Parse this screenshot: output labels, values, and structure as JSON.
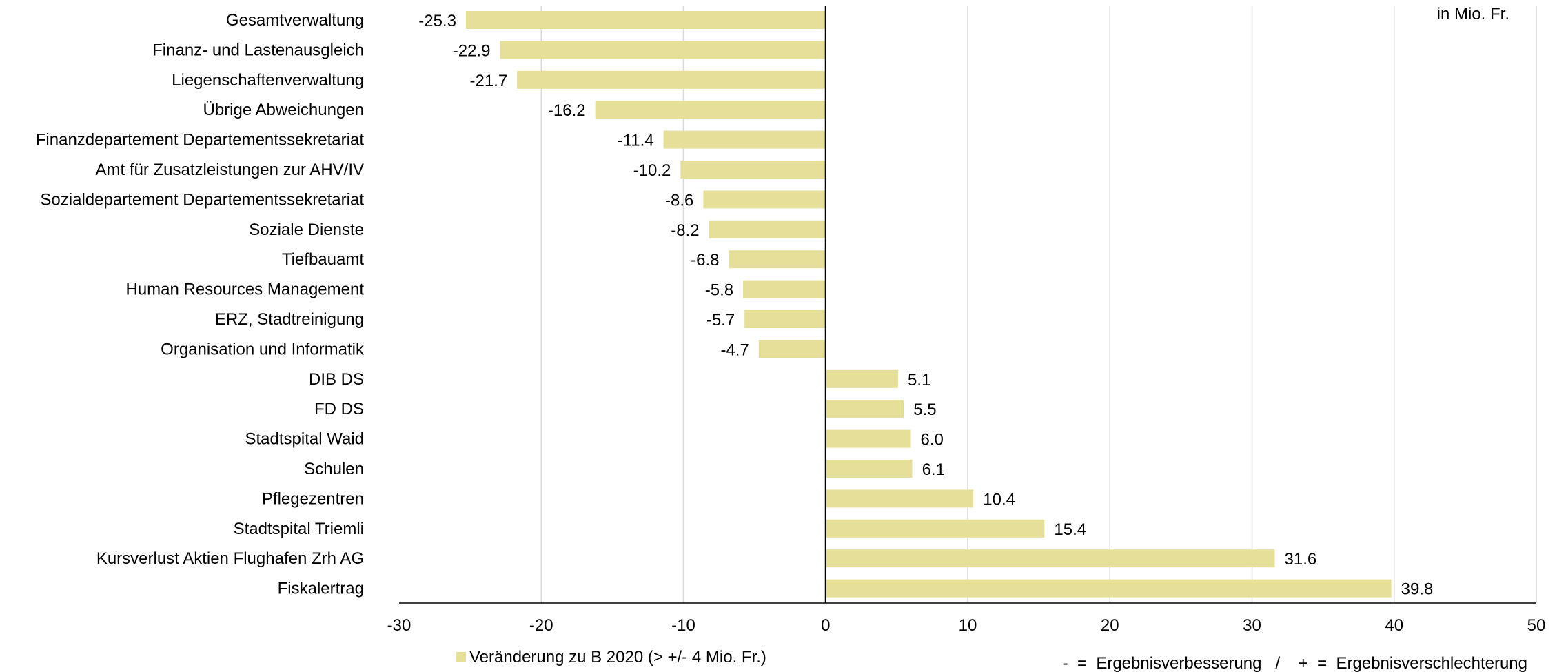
{
  "chart_data": {
    "type": "bar",
    "orientation": "horizontal",
    "unit_note": "in Mio. Fr.",
    "categories": [
      "Gesamtverwaltung",
      "Finanz- und Lastenausgleich",
      "Liegenschaftenverwaltung",
      "Übrige Abweichungen",
      "Finanzdepartement Departementssekretariat",
      "Amt für Zusatzleistungen zur AHV/IV",
      "Sozialdepartement Departementssekretariat",
      "Soziale Dienste",
      "Tiefbauamt",
      "Human Resources Management",
      "ERZ, Stadtreinigung",
      "Organisation und Informatik",
      "DIB DS",
      "FD DS",
      "Stadtspital Waid",
      "Schulen",
      "Pflegezentren",
      "Stadtspital Triemli",
      "Kursverlust Aktien Flughafen Zrh AG",
      "Fiskalertrag"
    ],
    "series": [
      {
        "name": "Veränderung zu B 2020 (> +/- 4 Mio. Fr.)",
        "color": "#e6df99",
        "values": [
          -25.3,
          -22.9,
          -21.7,
          -16.2,
          -11.4,
          -10.2,
          -8.6,
          -8.2,
          -6.8,
          -5.8,
          -5.7,
          -4.7,
          5.1,
          5.5,
          6.0,
          6.1,
          10.4,
          15.4,
          31.6,
          39.8
        ],
        "value_labels": [
          "-25.3",
          "-22.9",
          "-21.7",
          "-16.2",
          "-11.4",
          "-10.2",
          "-8.6",
          "-8.2",
          "-6.8",
          "-5.8",
          "-5.7",
          "-4.7",
          "5.1",
          "5.5",
          "6.0",
          "6.1",
          "10.4",
          "15.4",
          "31.6",
          "39.8"
        ]
      }
    ],
    "xlim": [
      -30,
      50
    ],
    "xticks": [
      -30,
      -20,
      -10,
      0,
      10,
      20,
      30,
      40,
      50
    ],
    "grid": "vertical",
    "legend_position": "bottom",
    "footnote": "-  =  Ergebnisverbesserung   /    +  =  Ergebnisverschlechterung",
    "colors": {
      "bar": "#e6df99",
      "grid": "#d9d9d9",
      "axis": "#000000"
    }
  }
}
